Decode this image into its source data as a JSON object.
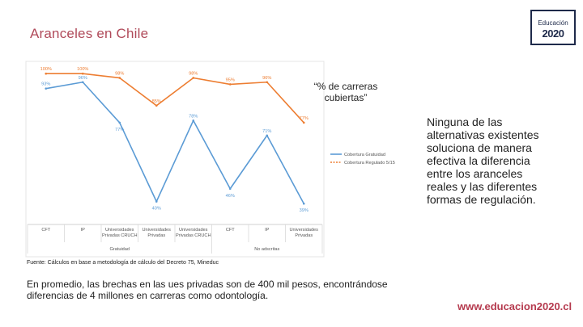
{
  "slide": {
    "title": "Aranceles en Chile",
    "logo_top": "Educación",
    "logo_bottom": "2020",
    "annotation": "“% de carreras cubiertas”",
    "source": "Fuente: Cálculos en base a metodología de cálculo del Decreto 75, Mineduc",
    "right_text": "Ninguna de las alternativas existentes soluciona de manera efectiva la diferencia entre los aranceles reales y las diferentes formas de regulación.",
    "bottom_text": "En promedio, las brechas en las ues privadas son de 400 mil pesos, encontrándose diferencias de 4 millones en carreras como odontología.",
    "site": "www.educacion2020.cl"
  },
  "colors": {
    "series_blue": "#5b9bd5",
    "series_orange": "#ed7d31",
    "title": "#b04a5a",
    "site": "#b53a4e"
  },
  "chart_data": {
    "type": "line",
    "categories": [
      "CFT",
      "IP",
      "Universidades Privadas CRUCH",
      "Universidades Privadas",
      "Universidades Privadas CRUCH",
      "CFT",
      "IP",
      "Universidades Privadas"
    ],
    "category_lines": [
      [
        "CFT"
      ],
      [
        "IP"
      ],
      [
        "Universidades",
        "Privadas CRUCH"
      ],
      [
        "Universidades",
        "Privadas"
      ],
      [
        "Universidades",
        "Privadas CRUCH"
      ],
      [
        "CFT"
      ],
      [
        "IP"
      ],
      [
        "Universidades",
        "Privadas"
      ]
    ],
    "groups": [
      {
        "label": "Gratuidad",
        "start": 0,
        "end": 4
      },
      {
        "label": "No adscritas",
        "start": 5,
        "end": 7
      }
    ],
    "series": [
      {
        "name": "Cobertura Gratuidad",
        "color": "#5b9bd5",
        "values": [
          93,
          96,
          77,
          40,
          78,
          46,
          71,
          39
        ],
        "labels": [
          "93%",
          "96%",
          "77%",
          "40%",
          "78%",
          "46%",
          "71%",
          "39%"
        ]
      },
      {
        "name": "Cobertura Regulado 5/15",
        "color": "#ed7d31",
        "values": [
          100,
          100,
          98,
          85,
          98,
          95,
          96,
          77
        ],
        "labels": [
          "100%",
          "100%",
          "98%",
          "85%",
          "98%",
          "95%",
          "96%",
          "77%"
        ]
      }
    ],
    "ylim": [
      30,
      105
    ],
    "grid": false,
    "legend_position": "right"
  }
}
